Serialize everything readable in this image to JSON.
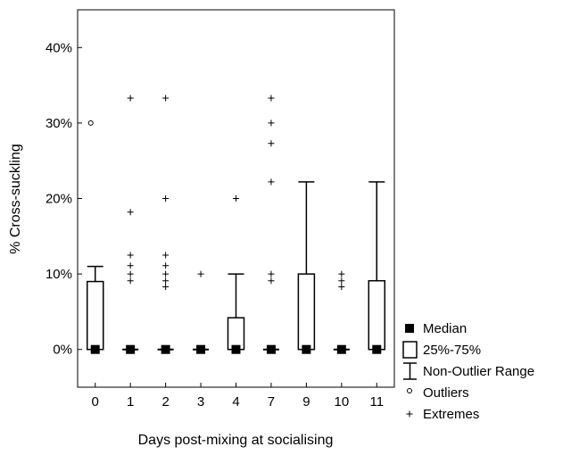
{
  "chart_data": {
    "type": "boxplot",
    "xlabel": "Days post-mixing at socialising",
    "ylabel": "% Cross-suckling",
    "ylim": [
      -5,
      45
    ],
    "yticks": [
      0,
      10,
      20,
      30,
      40
    ],
    "ytick_labels": [
      "0%",
      "10%",
      "20%",
      "30%",
      "40%"
    ],
    "categories": [
      "0",
      "1",
      "2",
      "3",
      "4",
      "7",
      "9",
      "10",
      "11"
    ],
    "boxes": [
      {
        "category": "0",
        "median": 0,
        "q1": 0,
        "q3": 9,
        "whisker_low": 0,
        "whisker_high": 11,
        "outliers": [
          30
        ],
        "extremes": []
      },
      {
        "category": "1",
        "median": 0,
        "q1": 0,
        "q3": 0,
        "whisker_low": 0,
        "whisker_high": 0,
        "outliers": [],
        "extremes": [
          33.3,
          18.2,
          12.5,
          11.1,
          10,
          9.1
        ]
      },
      {
        "category": "2",
        "median": 0,
        "q1": 0,
        "q3": 0,
        "whisker_low": 0,
        "whisker_high": 0,
        "outliers": [],
        "extremes": [
          33.3,
          20,
          12.5,
          11.1,
          10,
          9.1,
          8.3
        ]
      },
      {
        "category": "3",
        "median": 0,
        "q1": 0,
        "q3": 0,
        "whisker_low": 0,
        "whisker_high": 0,
        "outliers": [],
        "extremes": [
          10
        ]
      },
      {
        "category": "4",
        "median": 0,
        "q1": 0,
        "q3": 4.2,
        "whisker_low": 0,
        "whisker_high": 10,
        "outliers": [],
        "extremes": [
          20
        ]
      },
      {
        "category": "7",
        "median": 0,
        "q1": 0,
        "q3": 0,
        "whisker_low": 0,
        "whisker_high": 0,
        "outliers": [],
        "extremes": [
          33.3,
          30,
          27.3,
          22.2,
          10,
          9.1
        ]
      },
      {
        "category": "9",
        "median": 0,
        "q1": 0,
        "q3": 10,
        "whisker_low": 0,
        "whisker_high": 22.2,
        "outliers": [],
        "extremes": []
      },
      {
        "category": "10",
        "median": 0,
        "q1": 0,
        "q3": 0,
        "whisker_low": 0,
        "whisker_high": 0,
        "outliers": [],
        "extremes": [
          10,
          9.1,
          8.3
        ]
      },
      {
        "category": "11",
        "median": 0,
        "q1": 0,
        "q3": 9.1,
        "whisker_low": 0,
        "whisker_high": 22.2,
        "outliers": [],
        "extremes": []
      }
    ],
    "legend": {
      "position": "right-bottom",
      "entries": [
        {
          "symbol": "filled-square",
          "label": "Median"
        },
        {
          "symbol": "open-box",
          "label": "25%-75%"
        },
        {
          "symbol": "whisker",
          "label": "Non-Outlier Range"
        },
        {
          "symbol": "circle",
          "label": "Outliers"
        },
        {
          "symbol": "plus",
          "label": "Extremes"
        }
      ]
    },
    "grid": false
  }
}
